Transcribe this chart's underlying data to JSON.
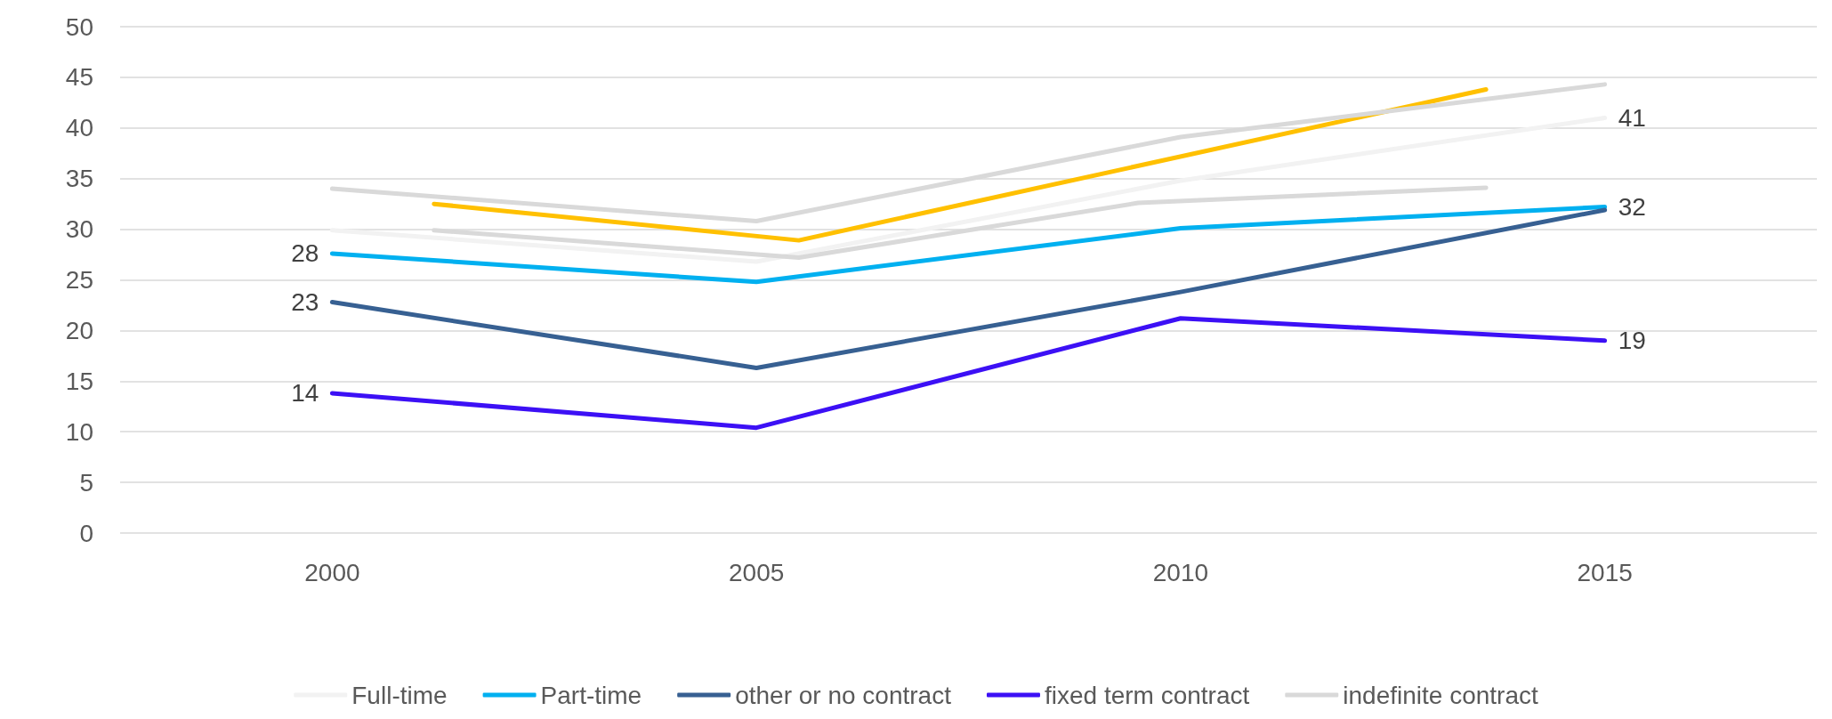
{
  "chart_data": {
    "type": "line",
    "xlim": [
      1997.5,
      2017.5
    ],
    "xticks": [
      2000,
      2005,
      2010,
      2015
    ],
    "ylim": [
      0,
      50
    ],
    "yticks": [
      0,
      5,
      10,
      15,
      20,
      25,
      30,
      35,
      40,
      45,
      50
    ],
    "grid": "y",
    "legend": "bottom",
    "marker": "none",
    "line_style": "solid",
    "series": [
      {
        "name": "Full-time",
        "color": "#f2f2f2",
        "x": [
          2000,
          2005,
          2010,
          2015
        ],
        "values": [
          29.9,
          26.8,
          34.8,
          41.0
        ],
        "value_labels": [
          null,
          null,
          null,
          "41"
        ]
      },
      {
        "color": "#d9d9d9",
        "x": [
          2001.2,
          2005.5,
          2009.5,
          2013.6
        ],
        "values": [
          29.9,
          27.2,
          32.6,
          34.1
        ]
      },
      {
        "name": "Part-time",
        "color": "#00b0f0",
        "x": [
          2000,
          2005,
          2010,
          2015
        ],
        "values": [
          27.6,
          24.8,
          30.1,
          32.2
        ],
        "value_labels": [
          "28",
          null,
          null,
          "32"
        ]
      },
      {
        "name": "other or no contract",
        "color": "#376092",
        "x": [
          2000,
          2005,
          2010,
          2015
        ],
        "values": [
          22.8,
          16.3,
          23.8,
          31.9
        ],
        "value_labels": [
          "23",
          null,
          null,
          null
        ]
      },
      {
        "name": "fixed term contract",
        "color": "#3c10f5",
        "x": [
          2000,
          2005,
          2010,
          2015
        ],
        "values": [
          13.8,
          10.4,
          21.2,
          19.0
        ],
        "value_labels": [
          "14",
          null,
          null,
          "19"
        ]
      },
      {
        "color": "#ffc000",
        "x": [
          2001.2,
          2005.5,
          2013.6
        ],
        "values": [
          32.5,
          28.9,
          43.8
        ]
      },
      {
        "name": "indefinite contract",
        "color": "#d9d9d9",
        "x": [
          2000,
          2005,
          2010,
          2015
        ],
        "values": [
          34.0,
          30.8,
          39.1,
          44.3
        ]
      }
    ]
  }
}
